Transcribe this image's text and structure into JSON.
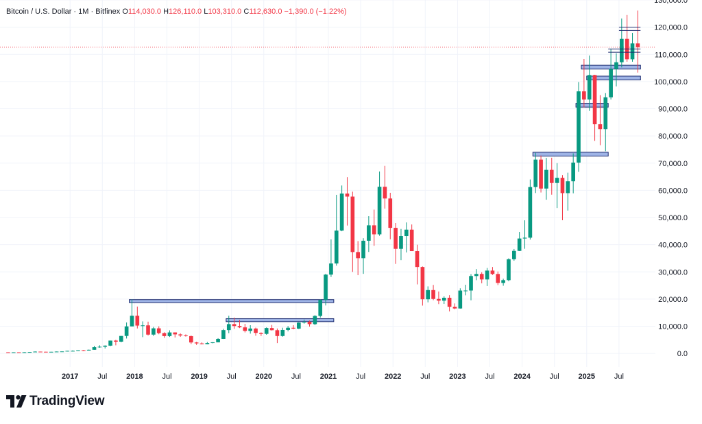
{
  "header": {
    "symbol": "Bitcoin / U.S. Dollar · 1M · Bitfinex",
    "o_label": "O",
    "o_value": "114,030.0",
    "h_label": "H",
    "h_value": "126,110.0",
    "l_label": "L",
    "l_value": "103,310.0",
    "c_label": "C",
    "c_value": "112,630.0",
    "change": "−1,390.0 (−1.22%)"
  },
  "brand": {
    "name": "TradingView"
  },
  "colors": {
    "up": "#089981",
    "down": "#f23645",
    "box_fill": "#9fb4e6",
    "box_border": "#1b2a6e",
    "grid": "#f0f3fa",
    "axis_text": "#131722"
  },
  "chart_data": {
    "type": "candlestick",
    "interval": "1M",
    "y_scale": "linear",
    "ylim": [
      -5000,
      130000
    ],
    "y_ticks": [
      {
        "value": 0,
        "label": "0.0"
      },
      {
        "value": 10000,
        "label": "10,000.0"
      },
      {
        "value": 20000,
        "label": "20,000.0"
      },
      {
        "value": 30000,
        "label": "30,000.0"
      },
      {
        "value": 40000,
        "label": "40,000.0"
      },
      {
        "value": 50000,
        "label": "50,000.0"
      },
      {
        "value": 60000,
        "label": "60,000.0"
      },
      {
        "value": 70000,
        "label": "70,000.0"
      },
      {
        "value": 80000,
        "label": "80,000.0"
      },
      {
        "value": 90000,
        "label": "90,000.0"
      },
      {
        "value": 100000,
        "label": "100,000.0"
      },
      {
        "value": 110000,
        "label": "110,000.0"
      },
      {
        "value": 120000,
        "label": "120,000.0"
      },
      {
        "value": 130000,
        "label": "130,000.0"
      }
    ],
    "x_ticks": [
      {
        "date": "2017-01",
        "label": "2017",
        "major": true
      },
      {
        "date": "2017-07",
        "label": "Jul",
        "major": false
      },
      {
        "date": "2018-01",
        "label": "2018",
        "major": true
      },
      {
        "date": "2018-07",
        "label": "Jul",
        "major": false
      },
      {
        "date": "2019-01",
        "label": "2019",
        "major": true
      },
      {
        "date": "2019-07",
        "label": "Jul",
        "major": false
      },
      {
        "date": "2020-01",
        "label": "2020",
        "major": true
      },
      {
        "date": "2020-07",
        "label": "Jul",
        "major": false
      },
      {
        "date": "2021-01",
        "label": "2021",
        "major": true
      },
      {
        "date": "2021-07",
        "label": "Jul",
        "major": false
      },
      {
        "date": "2022-01",
        "label": "2022",
        "major": true
      },
      {
        "date": "2022-07",
        "label": "Jul",
        "major": false
      },
      {
        "date": "2023-01",
        "label": "2023",
        "major": true
      },
      {
        "date": "2023-07",
        "label": "Jul",
        "major": false
      },
      {
        "date": "2024-01",
        "label": "2024",
        "major": true
      },
      {
        "date": "2024-07",
        "label": "Jul",
        "major": false
      },
      {
        "date": "2025-01",
        "label": "2025",
        "major": true
      },
      {
        "date": "2025-07",
        "label": "Jul",
        "major": false
      }
    ],
    "x_range": [
      "2016-01",
      "2025-12"
    ],
    "grid": true,
    "last_price": 112630,
    "candles": [
      {
        "d": "2016-01",
        "o": 430,
        "h": 460,
        "l": 360,
        "c": 370
      },
      {
        "d": "2016-02",
        "o": 370,
        "h": 440,
        "l": 360,
        "c": 435
      },
      {
        "d": "2016-03",
        "o": 435,
        "h": 440,
        "l": 405,
        "c": 415
      },
      {
        "d": "2016-04",
        "o": 415,
        "h": 470,
        "l": 410,
        "c": 450
      },
      {
        "d": "2016-05",
        "o": 450,
        "h": 540,
        "l": 440,
        "c": 530
      },
      {
        "d": "2016-06",
        "o": 530,
        "h": 770,
        "l": 520,
        "c": 675
      },
      {
        "d": "2016-07",
        "o": 675,
        "h": 700,
        "l": 480,
        "c": 620
      },
      {
        "d": "2016-08",
        "o": 620,
        "h": 625,
        "l": 540,
        "c": 575
      },
      {
        "d": "2016-09",
        "o": 575,
        "h": 620,
        "l": 570,
        "c": 610
      },
      {
        "d": "2016-10",
        "o": 610,
        "h": 720,
        "l": 605,
        "c": 700
      },
      {
        "d": "2016-11",
        "o": 700,
        "h": 760,
        "l": 690,
        "c": 745
      },
      {
        "d": "2016-12",
        "o": 745,
        "h": 980,
        "l": 740,
        "c": 965
      },
      {
        "d": "2017-01",
        "o": 965,
        "h": 1160,
        "l": 750,
        "c": 970
      },
      {
        "d": "2017-02",
        "o": 970,
        "h": 1210,
        "l": 920,
        "c": 1190
      },
      {
        "d": "2017-03",
        "o": 1190,
        "h": 1300,
        "l": 890,
        "c": 1080
      },
      {
        "d": "2017-04",
        "o": 1080,
        "h": 1430,
        "l": 1060,
        "c": 1350
      },
      {
        "d": "2017-05",
        "o": 1350,
        "h": 2800,
        "l": 1340,
        "c": 2300
      },
      {
        "d": "2017-06",
        "o": 2300,
        "h": 3000,
        "l": 2100,
        "c": 2480
      },
      {
        "d": "2017-07",
        "o": 2480,
        "h": 2980,
        "l": 1830,
        "c": 2870
      },
      {
        "d": "2017-08",
        "o": 2870,
        "h": 4750,
        "l": 2700,
        "c": 4730
      },
      {
        "d": "2017-09",
        "o": 4730,
        "h": 5000,
        "l": 2980,
        "c": 4340
      },
      {
        "d": "2017-10",
        "o": 4340,
        "h": 6470,
        "l": 4110,
        "c": 6440
      },
      {
        "d": "2017-11",
        "o": 6440,
        "h": 11400,
        "l": 5500,
        "c": 9950
      },
      {
        "d": "2017-12",
        "o": 9950,
        "h": 19890,
        "l": 9950,
        "c": 13880
      },
      {
        "d": "2018-01",
        "o": 13880,
        "h": 17250,
        "l": 9200,
        "c": 10250
      },
      {
        "d": "2018-02",
        "o": 10250,
        "h": 11800,
        "l": 6000,
        "c": 10330
      },
      {
        "d": "2018-03",
        "o": 10330,
        "h": 11700,
        "l": 6600,
        "c": 6930
      },
      {
        "d": "2018-04",
        "o": 6930,
        "h": 9760,
        "l": 6430,
        "c": 9240
      },
      {
        "d": "2018-05",
        "o": 9240,
        "h": 9990,
        "l": 7050,
        "c": 7500
      },
      {
        "d": "2018-06",
        "o": 7500,
        "h": 7780,
        "l": 5750,
        "c": 6390
      },
      {
        "d": "2018-07",
        "o": 6390,
        "h": 8500,
        "l": 6070,
        "c": 7730
      },
      {
        "d": "2018-08",
        "o": 7730,
        "h": 7770,
        "l": 5880,
        "c": 7010
      },
      {
        "d": "2018-09",
        "o": 7010,
        "h": 7410,
        "l": 6100,
        "c": 6630
      },
      {
        "d": "2018-10",
        "o": 6630,
        "h": 7010,
        "l": 6190,
        "c": 6370
      },
      {
        "d": "2018-11",
        "o": 6370,
        "h": 6610,
        "l": 3480,
        "c": 4040
      },
      {
        "d": "2018-12",
        "o": 4040,
        "h": 4310,
        "l": 3120,
        "c": 3700
      },
      {
        "d": "2019-01",
        "o": 3700,
        "h": 4080,
        "l": 3350,
        "c": 3440
      },
      {
        "d": "2019-02",
        "o": 3440,
        "h": 4210,
        "l": 3400,
        "c": 3820
      },
      {
        "d": "2019-03",
        "o": 3820,
        "h": 4150,
        "l": 3740,
        "c": 4100
      },
      {
        "d": "2019-04",
        "o": 4100,
        "h": 5620,
        "l": 4080,
        "c": 5350
      },
      {
        "d": "2019-05",
        "o": 5350,
        "h": 9100,
        "l": 5320,
        "c": 8590
      },
      {
        "d": "2019-06",
        "o": 8590,
        "h": 13880,
        "l": 7460,
        "c": 10800
      },
      {
        "d": "2019-07",
        "o": 10800,
        "h": 13200,
        "l": 9050,
        "c": 10080
      },
      {
        "d": "2019-08",
        "o": 10080,
        "h": 12330,
        "l": 9330,
        "c": 9600
      },
      {
        "d": "2019-09",
        "o": 9600,
        "h": 10900,
        "l": 7730,
        "c": 8300
      },
      {
        "d": "2019-10",
        "o": 8300,
        "h": 10400,
        "l": 7300,
        "c": 9170
      },
      {
        "d": "2019-11",
        "o": 9170,
        "h": 9500,
        "l": 6520,
        "c": 7560
      },
      {
        "d": "2019-12",
        "o": 7560,
        "h": 7760,
        "l": 6430,
        "c": 7200
      },
      {
        "d": "2020-01",
        "o": 7200,
        "h": 9580,
        "l": 6870,
        "c": 9350
      },
      {
        "d": "2020-02",
        "o": 9350,
        "h": 10500,
        "l": 8450,
        "c": 8550
      },
      {
        "d": "2020-03",
        "o": 8550,
        "h": 9190,
        "l": 3800,
        "c": 6410
      },
      {
        "d": "2020-04",
        "o": 6410,
        "h": 9470,
        "l": 6160,
        "c": 8630
      },
      {
        "d": "2020-05",
        "o": 8630,
        "h": 10080,
        "l": 8140,
        "c": 9450
      },
      {
        "d": "2020-06",
        "o": 9450,
        "h": 10400,
        "l": 8900,
        "c": 9140
      },
      {
        "d": "2020-07",
        "o": 9140,
        "h": 11450,
        "l": 8980,
        "c": 11350
      },
      {
        "d": "2020-08",
        "o": 11350,
        "h": 12480,
        "l": 10960,
        "c": 11650
      },
      {
        "d": "2020-09",
        "o": 11650,
        "h": 12080,
        "l": 9880,
        "c": 10780
      },
      {
        "d": "2020-10",
        "o": 10780,
        "h": 14100,
        "l": 10380,
        "c": 13800
      },
      {
        "d": "2020-11",
        "o": 13800,
        "h": 19860,
        "l": 13210,
        "c": 19700
      },
      {
        "d": "2020-12",
        "o": 19700,
        "h": 29300,
        "l": 17650,
        "c": 29000
      },
      {
        "d": "2021-01",
        "o": 29000,
        "h": 41950,
        "l": 28130,
        "c": 33100
      },
      {
        "d": "2021-02",
        "o": 33100,
        "h": 58350,
        "l": 32300,
        "c": 45200
      },
      {
        "d": "2021-03",
        "o": 45200,
        "h": 61780,
        "l": 44950,
        "c": 58800
      },
      {
        "d": "2021-04",
        "o": 58800,
        "h": 64850,
        "l": 47050,
        "c": 57700
      },
      {
        "d": "2021-05",
        "o": 57700,
        "h": 59500,
        "l": 30000,
        "c": 37300
      },
      {
        "d": "2021-06",
        "o": 37300,
        "h": 41330,
        "l": 28800,
        "c": 35040
      },
      {
        "d": "2021-07",
        "o": 35040,
        "h": 42400,
        "l": 29280,
        "c": 41460
      },
      {
        "d": "2021-08",
        "o": 41460,
        "h": 50500,
        "l": 37330,
        "c": 47130
      },
      {
        "d": "2021-09",
        "o": 47130,
        "h": 52920,
        "l": 39600,
        "c": 43820
      },
      {
        "d": "2021-10",
        "o": 43820,
        "h": 66930,
        "l": 43290,
        "c": 61300
      },
      {
        "d": "2021-11",
        "o": 61300,
        "h": 69000,
        "l": 53250,
        "c": 57000
      },
      {
        "d": "2021-12",
        "o": 57000,
        "h": 59100,
        "l": 42000,
        "c": 46200
      },
      {
        "d": "2022-01",
        "o": 46200,
        "h": 47990,
        "l": 32930,
        "c": 38480
      },
      {
        "d": "2022-02",
        "o": 38480,
        "h": 45800,
        "l": 34320,
        "c": 43190
      },
      {
        "d": "2022-03",
        "o": 43190,
        "h": 48190,
        "l": 37160,
        "c": 45540
      },
      {
        "d": "2022-04",
        "o": 45540,
        "h": 47440,
        "l": 37690,
        "c": 37640
      },
      {
        "d": "2022-05",
        "o": 37640,
        "h": 40000,
        "l": 25400,
        "c": 31800
      },
      {
        "d": "2022-06",
        "o": 31800,
        "h": 32000,
        "l": 17600,
        "c": 19930
      },
      {
        "d": "2022-07",
        "o": 19930,
        "h": 24670,
        "l": 18800,
        "c": 23310
      },
      {
        "d": "2022-08",
        "o": 23310,
        "h": 25200,
        "l": 19600,
        "c": 20050
      },
      {
        "d": "2022-09",
        "o": 20050,
        "h": 22800,
        "l": 18150,
        "c": 19420
      },
      {
        "d": "2022-10",
        "o": 19420,
        "h": 21000,
        "l": 18200,
        "c": 20490
      },
      {
        "d": "2022-11",
        "o": 20490,
        "h": 21450,
        "l": 15480,
        "c": 17170
      },
      {
        "d": "2022-12",
        "o": 17170,
        "h": 18400,
        "l": 16270,
        "c": 16540
      },
      {
        "d": "2023-01",
        "o": 16540,
        "h": 23960,
        "l": 16500,
        "c": 23130
      },
      {
        "d": "2023-02",
        "o": 23130,
        "h": 25270,
        "l": 21400,
        "c": 23140
      },
      {
        "d": "2023-03",
        "o": 23140,
        "h": 29200,
        "l": 19560,
        "c": 28480
      },
      {
        "d": "2023-04",
        "o": 28480,
        "h": 31050,
        "l": 26950,
        "c": 29250
      },
      {
        "d": "2023-05",
        "o": 29250,
        "h": 29850,
        "l": 25800,
        "c": 27220
      },
      {
        "d": "2023-06",
        "o": 27220,
        "h": 31440,
        "l": 24800,
        "c": 30480
      },
      {
        "d": "2023-07",
        "o": 30480,
        "h": 31800,
        "l": 28870,
        "c": 29230
      },
      {
        "d": "2023-08",
        "o": 29230,
        "h": 30150,
        "l": 25150,
        "c": 25940
      },
      {
        "d": "2023-09",
        "o": 25940,
        "h": 27490,
        "l": 24900,
        "c": 26960
      },
      {
        "d": "2023-10",
        "o": 26960,
        "h": 35000,
        "l": 26550,
        "c": 34650
      },
      {
        "d": "2023-11",
        "o": 34650,
        "h": 38420,
        "l": 34100,
        "c": 37720
      },
      {
        "d": "2023-12",
        "o": 37720,
        "h": 44700,
        "l": 37650,
        "c": 42280
      },
      {
        "d": "2024-01",
        "o": 42280,
        "h": 48970,
        "l": 38500,
        "c": 42580
      },
      {
        "d": "2024-02",
        "o": 42580,
        "h": 64000,
        "l": 41880,
        "c": 61200
      },
      {
        "d": "2024-03",
        "o": 61200,
        "h": 73800,
        "l": 59000,
        "c": 71300
      },
      {
        "d": "2024-04",
        "o": 71300,
        "h": 72800,
        "l": 59200,
        "c": 60650
      },
      {
        "d": "2024-05",
        "o": 60650,
        "h": 71950,
        "l": 56550,
        "c": 67520
      },
      {
        "d": "2024-06",
        "o": 67520,
        "h": 72000,
        "l": 58400,
        "c": 62700
      },
      {
        "d": "2024-07",
        "o": 62700,
        "h": 70000,
        "l": 53500,
        "c": 64600
      },
      {
        "d": "2024-08",
        "o": 64600,
        "h": 65600,
        "l": 49000,
        "c": 58970
      },
      {
        "d": "2024-09",
        "o": 58970,
        "h": 66500,
        "l": 52550,
        "c": 63330
      },
      {
        "d": "2024-10",
        "o": 63330,
        "h": 73600,
        "l": 58900,
        "c": 70200
      },
      {
        "d": "2024-11",
        "o": 70200,
        "h": 99800,
        "l": 66800,
        "c": 96400
      },
      {
        "d": "2024-12",
        "o": 96400,
        "h": 108300,
        "l": 90500,
        "c": 93400
      },
      {
        "d": "2025-01",
        "o": 93400,
        "h": 109600,
        "l": 89200,
        "c": 102400
      },
      {
        "d": "2025-02",
        "o": 102400,
        "h": 102500,
        "l": 78200,
        "c": 84300
      },
      {
        "d": "2025-03",
        "o": 84300,
        "h": 95000,
        "l": 76600,
        "c": 82500
      },
      {
        "d": "2025-04",
        "o": 82500,
        "h": 95750,
        "l": 74400,
        "c": 94200
      },
      {
        "d": "2025-05",
        "o": 94200,
        "h": 111900,
        "l": 93400,
        "c": 104600
      },
      {
        "d": "2025-06",
        "o": 104600,
        "h": 110400,
        "l": 98200,
        "c": 107100
      },
      {
        "d": "2025-07",
        "o": 107100,
        "h": 123200,
        "l": 105200,
        "c": 115700
      },
      {
        "d": "2025-08",
        "o": 115700,
        "h": 124500,
        "l": 107300,
        "c": 108200
      },
      {
        "d": "2025-09",
        "o": 108200,
        "h": 117900,
        "l": 107300,
        "c": 114030
      },
      {
        "d": "2025-10",
        "o": 114030,
        "h": 126110,
        "l": 103310,
        "c": 112630
      }
    ],
    "zones": [
      {
        "start": "2017-12",
        "end": "2021-01",
        "top": 19800,
        "bottom": 18700
      },
      {
        "start": "2019-06",
        "end": "2021-01",
        "top": 12800,
        "bottom": 11700
      },
      {
        "start": "2024-03",
        "end": "2025-04",
        "top": 74000,
        "bottom": 72600
      },
      {
        "start": "2024-11",
        "end": "2025-04",
        "top": 92000,
        "bottom": 90600
      },
      {
        "start": "2024-12",
        "end": "2025-10",
        "top": 106000,
        "bottom": 104600
      },
      {
        "start": "2025-01",
        "end": "2025-10",
        "top": 102000,
        "bottom": 100600
      }
    ],
    "levels": [
      {
        "start": "2025-05",
        "end": "2025-10",
        "value": 112000
      },
      {
        "start": "2025-05",
        "end": "2025-10",
        "value": 110800
      },
      {
        "start": "2025-07",
        "end": "2025-10",
        "value": 120000
      },
      {
        "start": "2025-07",
        "end": "2025-10",
        "value": 118800
      }
    ]
  }
}
